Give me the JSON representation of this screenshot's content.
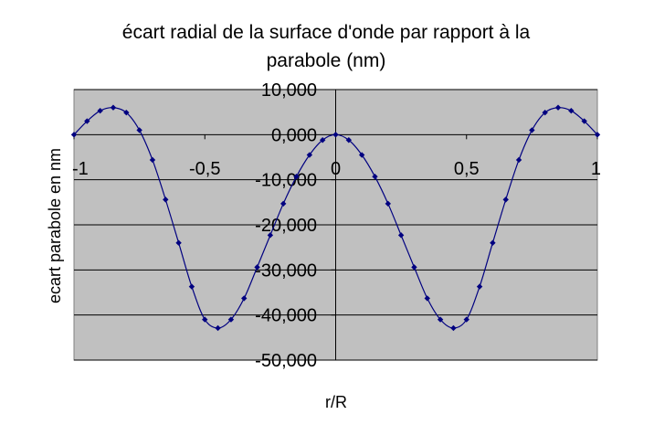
{
  "chart_data": {
    "type": "line",
    "title_line1": "écart radial de la surface d'onde par rapport à la",
    "title_line2": "parabole (nm)",
    "xlabel": "r/R",
    "ylabel": "ecart parabole en nm",
    "xlim": [
      -1,
      1
    ],
    "ylim": [
      -50,
      10
    ],
    "grid": true,
    "background_color": "#c0c0c0",
    "line_color": "#000080",
    "marker_color": "#000080",
    "x_ticks": [
      {
        "value": -1,
        "label": "-1"
      },
      {
        "value": -0.5,
        "label": "-0,5"
      },
      {
        "value": 0,
        "label": "0"
      },
      {
        "value": 0.5,
        "label": "0,5"
      },
      {
        "value": 1,
        "label": "1"
      }
    ],
    "y_ticks": [
      {
        "value": 10,
        "label": "10,000"
      },
      {
        "value": 0,
        "label": "0,000"
      },
      {
        "value": -10,
        "label": "-10,000"
      },
      {
        "value": -20,
        "label": "-20,000"
      },
      {
        "value": -30,
        "label": "-30,000"
      },
      {
        "value": -40,
        "label": "-40,000"
      },
      {
        "value": -50,
        "label": "-50,000"
      }
    ],
    "series": [
      {
        "x": [
          -1.0,
          -0.95,
          -0.9,
          -0.85,
          -0.8,
          -0.75,
          -0.7,
          -0.65,
          -0.6,
          -0.55,
          -0.5,
          -0.45,
          -0.4,
          -0.35,
          -0.3,
          -0.25,
          -0.2,
          -0.15,
          -0.1,
          -0.05,
          0.0,
          0.05,
          0.1,
          0.15,
          0.2,
          0.25,
          0.3,
          0.35,
          0.4,
          0.45,
          0.5,
          0.55,
          0.6,
          0.65,
          0.7,
          0.75,
          0.8,
          0.85,
          0.9,
          0.95,
          1.0
        ],
        "y": [
          0.0,
          3.0,
          5.3,
          6.0,
          4.9,
          1.0,
          -5.6,
          -14.4,
          -24.0,
          -33.7,
          -41.0,
          -42.9,
          -41.0,
          -36.3,
          -29.4,
          -22.3,
          -15.3,
          -9.3,
          -4.5,
          -1.2,
          0.0,
          -1.2,
          -4.5,
          -9.3,
          -15.3,
          -22.3,
          -29.4,
          -36.3,
          -41.0,
          -42.9,
          -41.0,
          -33.7,
          -24.0,
          -14.4,
          -5.6,
          1.0,
          4.9,
          6.0,
          5.3,
          3.0,
          0.0
        ]
      }
    ]
  }
}
